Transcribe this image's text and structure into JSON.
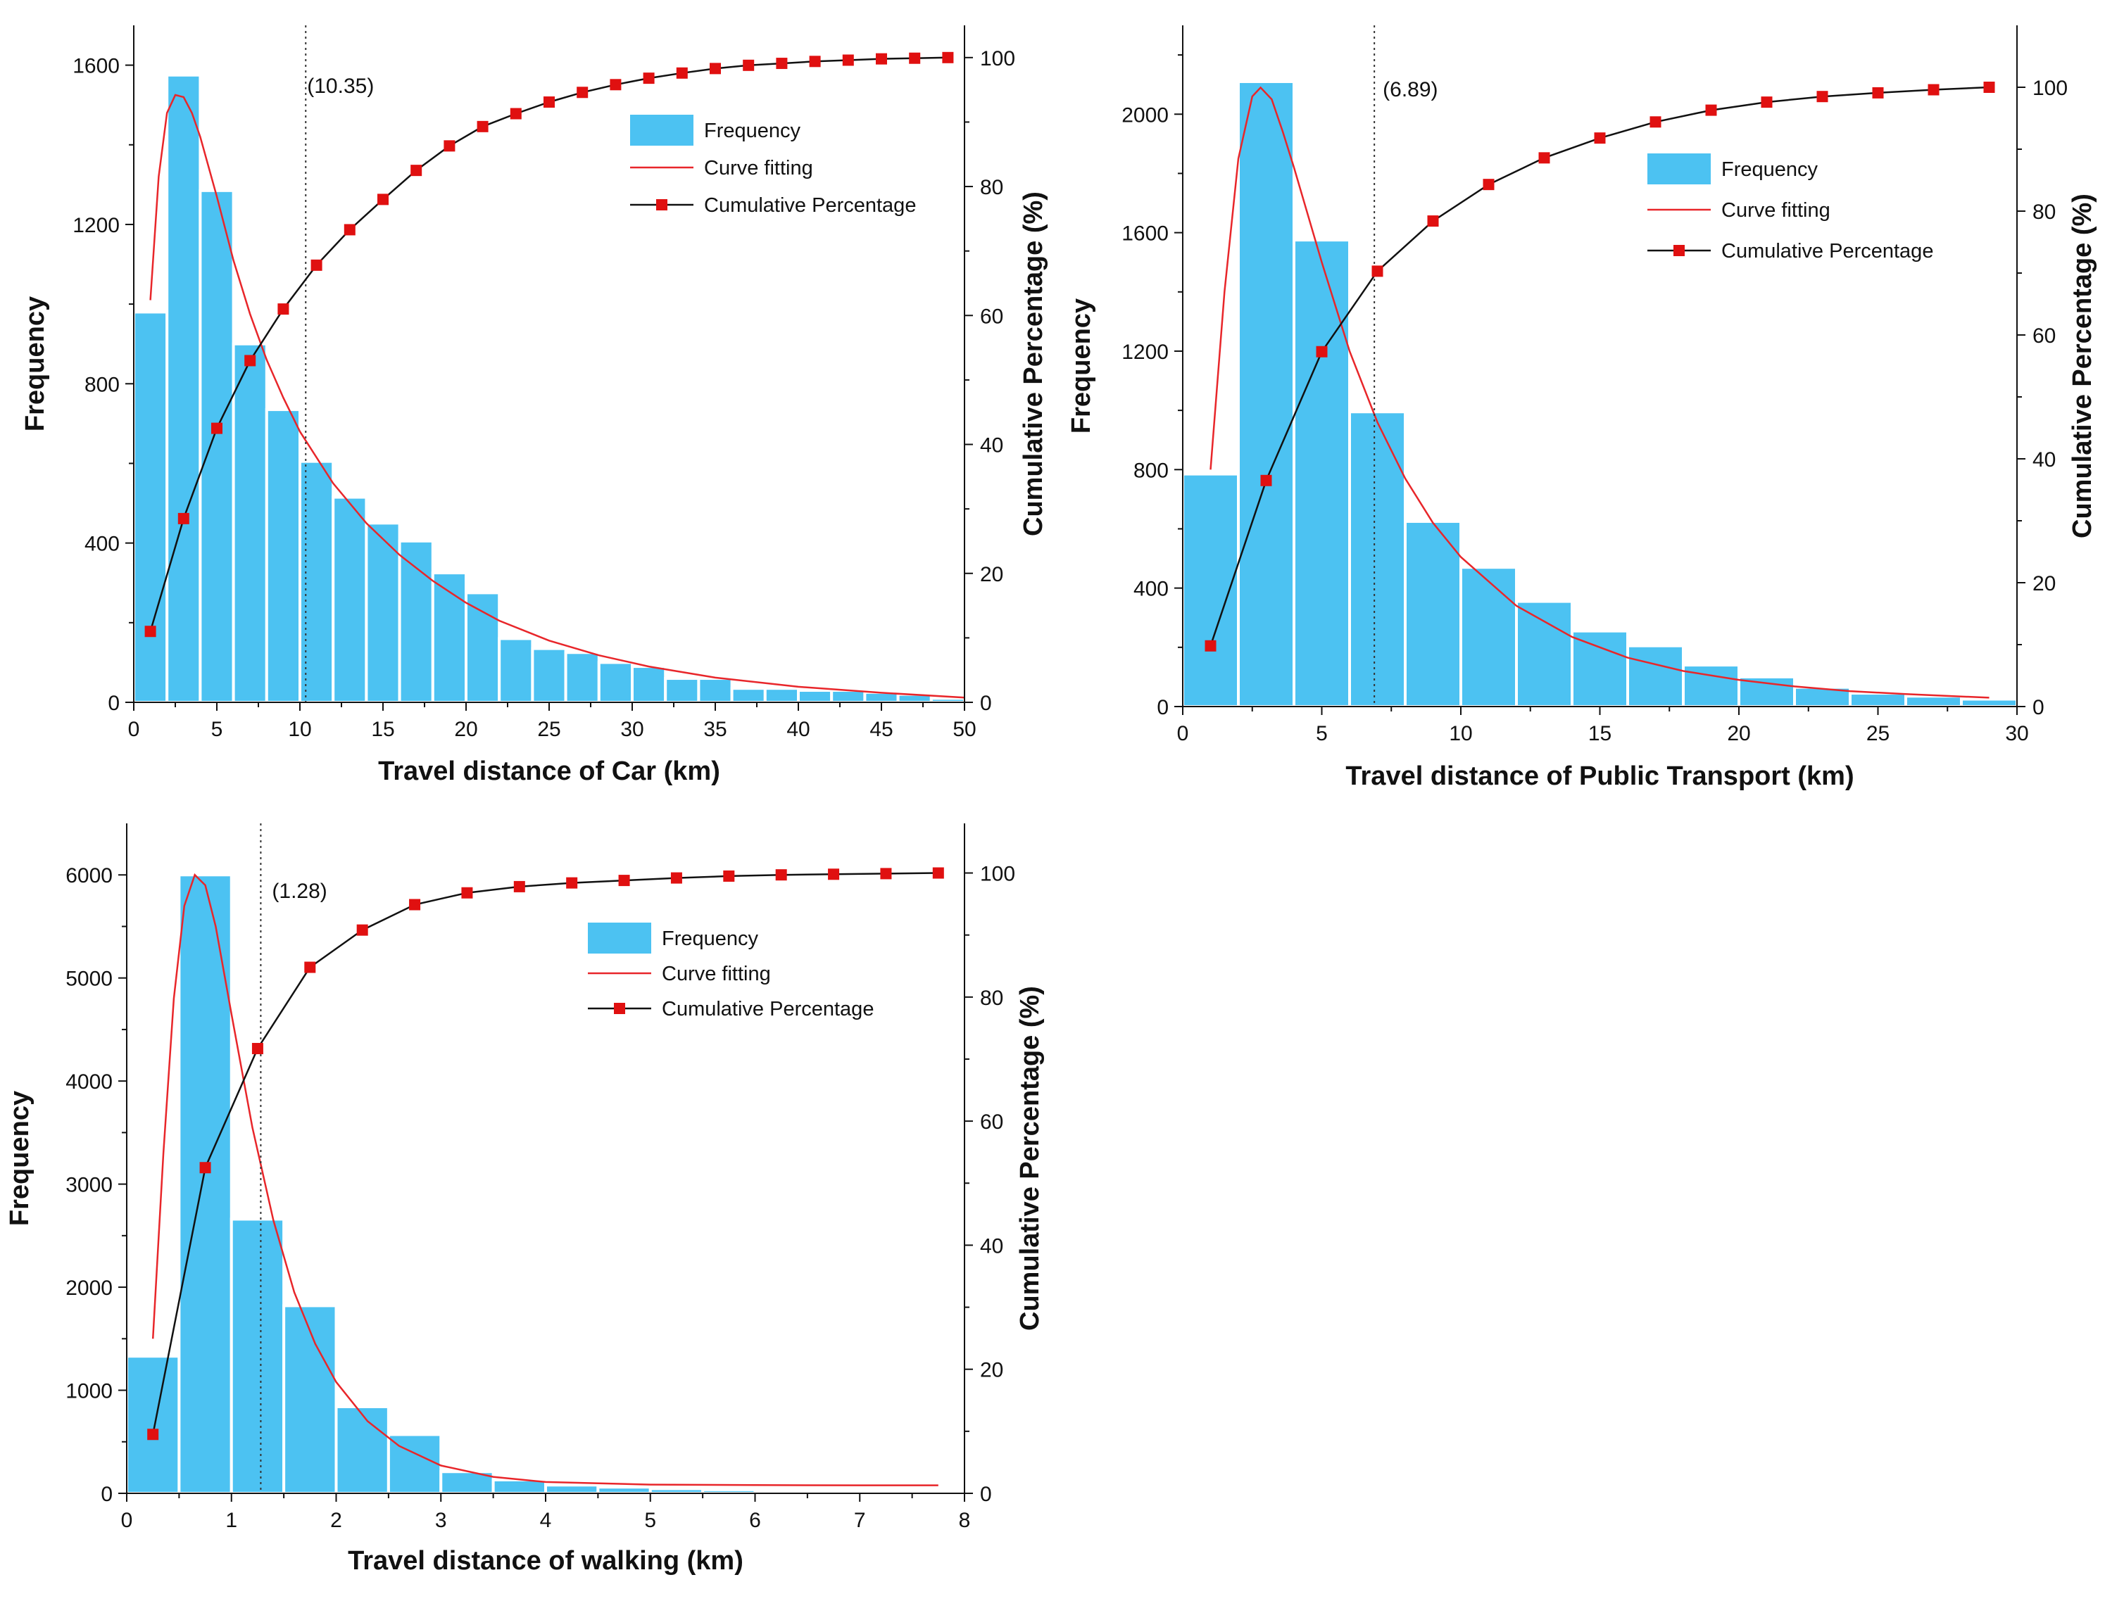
{
  "colors": {
    "bar_fill": "#4cc2f2",
    "bar_edge": "#ffffff",
    "curve": "#e8262a",
    "cumulative_line": "#111111",
    "cumulative_marker": "#e01010",
    "axis": "#111111",
    "marker_line": "#333333"
  },
  "legend_labels": {
    "frequency": "Frequency",
    "curve": "Curve fitting",
    "cumulative": "Cumulative Percentage"
  },
  "chart_data": [
    {
      "id": "car",
      "type": "bar",
      "title": "",
      "xlabel": "Travel distance of Car (km)",
      "ylabel": "Frequency",
      "y2label": "Cumulative Percentage (%)",
      "xlim": [
        0,
        50
      ],
      "ylim": [
        0,
        1700
      ],
      "y2lim": [
        0,
        105
      ],
      "xticks": [
        0,
        5,
        10,
        15,
        20,
        25,
        30,
        35,
        40,
        45,
        50
      ],
      "yticks": [
        0,
        400,
        800,
        1200,
        1600
      ],
      "y2ticks": [
        0,
        20,
        40,
        60,
        80,
        100
      ],
      "grid": false,
      "legend_position": "top-right",
      "bin_width": 2,
      "bins_start": [
        0,
        2,
        4,
        6,
        8,
        10,
        12,
        14,
        16,
        18,
        20,
        22,
        24,
        26,
        28,
        30,
        32,
        34,
        36,
        38,
        40,
        42,
        44,
        46,
        48
      ],
      "frequency": [
        980,
        1575,
        1285,
        900,
        735,
        605,
        515,
        450,
        405,
        325,
        275,
        160,
        135,
        125,
        100,
        90,
        60,
        60,
        35,
        35,
        30,
        30,
        25,
        20,
        10
      ],
      "cumulative_x": [
        1,
        3,
        5,
        7,
        9,
        11,
        13,
        15,
        17,
        19,
        21,
        23,
        25,
        27,
        29,
        31,
        33,
        35,
        37,
        39,
        41,
        43,
        45,
        47,
        49
      ],
      "cumulative_pct": [
        11,
        28.5,
        42.5,
        53,
        61,
        67.8,
        73.3,
        78,
        82.5,
        86.3,
        89.3,
        91.3,
        93.1,
        94.6,
        95.8,
        96.8,
        97.6,
        98.3,
        98.8,
        99.1,
        99.4,
        99.6,
        99.8,
        99.9,
        100
      ],
      "curve_x": [
        1,
        1.5,
        2,
        2.5,
        3,
        3.5,
        4,
        5,
        6,
        7,
        8,
        9,
        10,
        12,
        14,
        16,
        18,
        20,
        22,
        25,
        28,
        31,
        35,
        40,
        45,
        50
      ],
      "curve_y": [
        1010,
        1320,
        1480,
        1525,
        1520,
        1480,
        1420,
        1270,
        1110,
        975,
        860,
        765,
        680,
        550,
        450,
        370,
        305,
        250,
        205,
        155,
        118,
        90,
        62,
        39,
        24,
        12
      ],
      "marker": {
        "x": 10.35,
        "label": "(10.35)"
      }
    },
    {
      "id": "public-transport",
      "type": "bar",
      "title": "",
      "xlabel": "Travel distance of Public Transport (km)",
      "ylabel": "Frequency",
      "y2label": "Cumulative Percentage (%)",
      "xlim": [
        0,
        30
      ],
      "ylim": [
        0,
        2300
      ],
      "y2lim": [
        0,
        110
      ],
      "xticks": [
        0,
        5,
        10,
        15,
        20,
        25,
        30
      ],
      "yticks": [
        0,
        400,
        800,
        1200,
        1600,
        2000
      ],
      "y2ticks": [
        0,
        20,
        40,
        60,
        80,
        100
      ],
      "grid": false,
      "legend_position": "top-right",
      "bin_width": 2,
      "bins_start": [
        0,
        2,
        4,
        6,
        8,
        10,
        12,
        14,
        16,
        18,
        20,
        22,
        24,
        26,
        28
      ],
      "frequency": [
        785,
        2110,
        1575,
        995,
        625,
        470,
        355,
        255,
        205,
        140,
        100,
        65,
        45,
        35,
        25
      ],
      "cumulative_x": [
        1,
        3,
        5,
        7,
        9,
        11,
        13,
        15,
        17,
        19,
        21,
        23,
        25,
        27,
        29
      ],
      "cumulative_pct": [
        9.8,
        36.5,
        57.3,
        70.3,
        78.4,
        84.3,
        88.6,
        91.8,
        94.4,
        96.3,
        97.6,
        98.5,
        99.1,
        99.6,
        100
      ],
      "curve_x": [
        1,
        1.5,
        2,
        2.5,
        2.8,
        3.2,
        3.6,
        4,
        5,
        6,
        7,
        8,
        9,
        10,
        12,
        14,
        16,
        18,
        20,
        22,
        24,
        26,
        28,
        29
      ],
      "curve_y": [
        800,
        1400,
        1850,
        2060,
        2090,
        2050,
        1940,
        1820,
        1500,
        1200,
        960,
        770,
        620,
        505,
        340,
        235,
        165,
        120,
        90,
        68,
        52,
        42,
        34,
        30
      ],
      "marker": {
        "x": 6.89,
        "label": "(6.89)"
      }
    },
    {
      "id": "walking",
      "type": "bar",
      "title": "",
      "xlabel": "Travel distance of walking (km)",
      "ylabel": "Frequency",
      "y2label": "Cumulative Percentage (%)",
      "xlim": [
        0,
        8
      ],
      "ylim": [
        0,
        6500
      ],
      "y2lim": [
        0,
        108
      ],
      "xticks": [
        0,
        1,
        2,
        3,
        4,
        5,
        6,
        7,
        8
      ],
      "yticks": [
        0,
        1000,
        2000,
        3000,
        4000,
        5000,
        6000
      ],
      "y2ticks": [
        0,
        20,
        40,
        60,
        80,
        100
      ],
      "grid": false,
      "legend_position": "top-right",
      "bin_width": 0.5,
      "bins_start": [
        0,
        0.5,
        1,
        1.5,
        2,
        2.5,
        3,
        3.5,
        4,
        4.5,
        5,
        5.5,
        6,
        6.5,
        7,
        7.5
      ],
      "frequency": [
        1330,
        6000,
        2660,
        1820,
        840,
        570,
        210,
        130,
        80,
        60,
        45,
        35,
        25,
        20,
        15,
        10
      ],
      "cumulative_x": [
        0.25,
        0.75,
        1.25,
        1.75,
        2.25,
        2.75,
        3.25,
        3.75,
        4.25,
        4.75,
        5.25,
        5.75,
        6.25,
        6.75,
        7.25,
        7.75
      ],
      "cumulative_pct": [
        9.5,
        52.5,
        71.7,
        84.8,
        90.8,
        94.9,
        96.8,
        97.8,
        98.4,
        98.8,
        99.2,
        99.5,
        99.7,
        99.8,
        99.9,
        100
      ],
      "curve_x": [
        0.25,
        0.35,
        0.45,
        0.55,
        0.65,
        0.75,
        0.85,
        1,
        1.2,
        1.4,
        1.6,
        1.8,
        2,
        2.3,
        2.6,
        3,
        3.5,
        4,
        5,
        6,
        7,
        7.75
      ],
      "curve_y": [
        1500,
        3300,
        4800,
        5700,
        6000,
        5900,
        5500,
        4650,
        3550,
        2650,
        1950,
        1450,
        1080,
        700,
        460,
        270,
        160,
        110,
        85,
        80,
        78,
        78
      ],
      "marker": {
        "x": 1.28,
        "label": "(1.28)"
      }
    }
  ]
}
